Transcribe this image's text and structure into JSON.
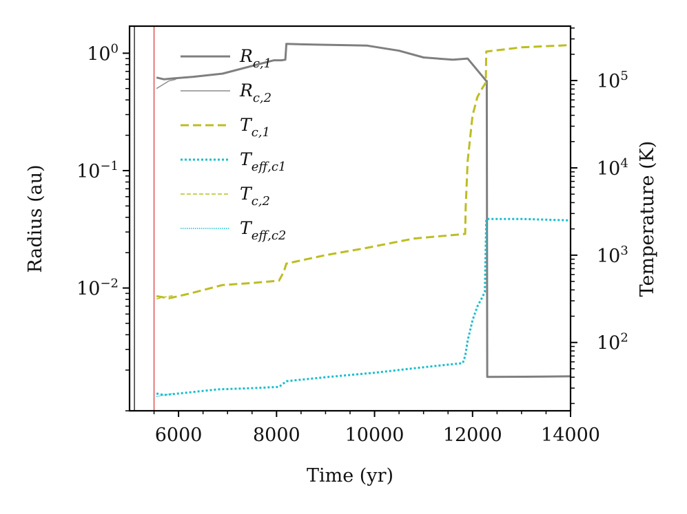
{
  "chart_data": {
    "type": "line",
    "xlabel": "Time (yr)",
    "ylabel_left": "Radius (au)",
    "ylabel_right": "Temperature (K)",
    "xlim": [
      5000,
      14000
    ],
    "ylim_left": [
      0.0009,
      1.7
    ],
    "ylim_right": [
      16.5,
      420000
    ],
    "x_ticks": [
      {
        "value": 6000,
        "label": "6000"
      },
      {
        "value": 8000,
        "label": "8000"
      },
      {
        "value": 10000,
        "label": "10000"
      },
      {
        "value": 12000,
        "label": "12000"
      },
      {
        "value": 14000,
        "label": "14000"
      }
    ],
    "y_ticks_left": [
      {
        "value": 1,
        "base": "10",
        "exp": "0"
      },
      {
        "value": 0.1,
        "base": "10",
        "exp": "−1"
      },
      {
        "value": 0.01,
        "base": "10",
        "exp": "−2"
      }
    ],
    "y_ticks_right": [
      {
        "value": 100000,
        "base": "10",
        "exp": "5"
      },
      {
        "value": 10000,
        "base": "10",
        "exp": "4"
      },
      {
        "value": 1000,
        "base": "10",
        "exp": "3"
      },
      {
        "value": 100,
        "base": "10",
        "exp": "2"
      }
    ],
    "vlines": [
      {
        "x": 5100,
        "color": "#333333"
      },
      {
        "x": 5500,
        "color": "#e05050"
      }
    ],
    "series": [
      {
        "key": "rc1",
        "name": "R",
        "sub": "c,1",
        "axis": "left",
        "color": "#7f7f7f",
        "style": "solid",
        "width": 3,
        "x": [
          5550,
          5700,
          5900,
          6300,
          6900,
          7600,
          7950,
          8100,
          8180,
          8200,
          8500,
          9000,
          9500,
          9850,
          10500,
          11000,
          11600,
          11900,
          12280,
          12290,
          12300,
          13500,
          14000
        ],
        "values": [
          0.62,
          0.6,
          0.61,
          0.63,
          0.67,
          0.8,
          0.87,
          0.87,
          0.88,
          1.2,
          1.19,
          1.18,
          1.17,
          1.16,
          1.05,
          0.92,
          0.88,
          0.9,
          0.58,
          0.58,
          0.00175,
          0.00176,
          0.00177
        ]
      },
      {
        "key": "rc2",
        "name": "R",
        "sub": "c,2",
        "axis": "left",
        "color": "#8c8c8c",
        "style": "solid",
        "width": 1.5,
        "x": [
          5550,
          5650,
          5800,
          5950
        ],
        "values": [
          0.5,
          0.53,
          0.58,
          0.6
        ]
      },
      {
        "key": "tc1",
        "name": "T",
        "sub": "c,1",
        "axis": "right",
        "color": "#bcbd22",
        "style": "dashed",
        "width": 3,
        "x": [
          5550,
          5800,
          6200,
          6900,
          7500,
          8050,
          8150,
          8200,
          9000,
          9800,
          10800,
          11850,
          11860,
          11900,
          12000,
          12100,
          12200,
          12270,
          12280,
          13000,
          14000
        ],
        "values": [
          340,
          320,
          360,
          455,
          480,
          510,
          650,
          800,
          1000,
          1200,
          1550,
          1750,
          3500,
          12000,
          40000,
          65000,
          82000,
          95000,
          215000,
          240000,
          255000
        ]
      },
      {
        "key": "teff1",
        "name": "T",
        "sub": "eff,c1",
        "axis": "right",
        "color": "#17becf",
        "style": "dotted",
        "width": 3,
        "x": [
          5550,
          5700,
          6000,
          6800,
          7500,
          8050,
          8200,
          9000,
          10000,
          11000,
          11800,
          11850,
          11900,
          12000,
          12100,
          12200,
          12250,
          12280,
          13000,
          14000
        ],
        "values": [
          26,
          25,
          26,
          29,
          30,
          31,
          36,
          40,
          45,
          52,
          58,
          70,
          105,
          180,
          260,
          330,
          380,
          2600,
          2600,
          2500
        ]
      },
      {
        "key": "tc2",
        "name": "T",
        "sub": "c,2",
        "axis": "right",
        "color": "#bcbd22",
        "style": "dashed",
        "width": 1.5,
        "x": [
          5550,
          5700,
          5900
        ],
        "values": [
          315,
          330,
          345
        ]
      },
      {
        "key": "teff2",
        "name": "T",
        "sub": "eff,c2",
        "axis": "right",
        "color": "#17becf",
        "style": "dotted",
        "width": 1.5,
        "x": [
          5550,
          5700,
          5900
        ],
        "values": [
          24,
          25,
          26
        ]
      }
    ]
  }
}
